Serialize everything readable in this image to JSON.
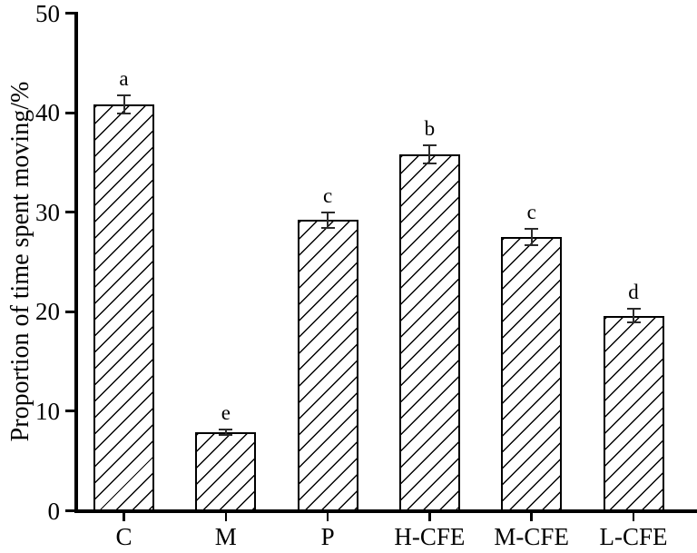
{
  "chart_data": {
    "type": "bar",
    "title": "",
    "ylabel": "Proportion of time spent moving/%",
    "xlabel": "",
    "ylim": [
      0,
      50
    ],
    "yticks": [
      0,
      10,
      20,
      30,
      40,
      50
    ],
    "grid": false,
    "legend": "none",
    "categories": [
      "C",
      "M",
      "P",
      "H-CFE",
      "M-CFE",
      "L-CFE"
    ],
    "values": [
      40.8,
      7.9,
      29.2,
      35.8,
      27.5,
      19.6
    ],
    "error_bars": [
      0.9,
      0.3,
      0.8,
      0.9,
      0.8,
      0.7
    ],
    "sig_letters": [
      "a",
      "e",
      "c",
      "b",
      "c",
      "d"
    ],
    "bar_fill": "white",
    "bar_hatch": "diagonal-forward-slash",
    "colors": {
      "background": "#ffffff",
      "axis": "#000000",
      "bar_border": "#000000",
      "hatch_line": "#000000",
      "error_bar": "#2b2b2b",
      "text": "#000000"
    }
  }
}
